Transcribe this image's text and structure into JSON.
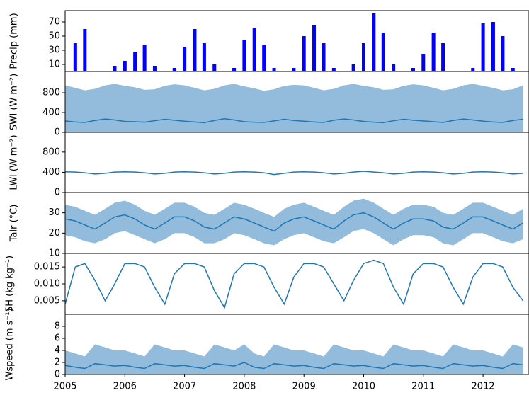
{
  "chart_data": [
    {
      "type": "bar",
      "ylabel": "Precip (mm)",
      "color": "#0000ff",
      "x": [
        2005,
        2005.17,
        2005.33,
        2005.5,
        2005.67,
        2005.83,
        2006,
        2006.17,
        2006.33,
        2006.5,
        2006.67,
        2006.83,
        2007,
        2007.17,
        2007.33,
        2007.5,
        2007.67,
        2007.83,
        2008,
        2008.17,
        2008.33,
        2008.5,
        2008.67,
        2008.83,
        2009,
        2009.17,
        2009.33,
        2009.5,
        2009.67,
        2009.83,
        2010,
        2010.17,
        2010.33,
        2010.5,
        2010.67,
        2010.83,
        2011,
        2011.17,
        2011.33,
        2011.5,
        2011.67,
        2011.83,
        2012,
        2012.17,
        2012.33,
        2012.5,
        2012.67
      ],
      "values": [
        0,
        40,
        60,
        0,
        0,
        8,
        15,
        28,
        38,
        8,
        0,
        5,
        35,
        60,
        40,
        10,
        0,
        5,
        45,
        62,
        38,
        5,
        0,
        5,
        50,
        65,
        40,
        5,
        0,
        10,
        40,
        82,
        55,
        10,
        0,
        5,
        25,
        55,
        40,
        0,
        0,
        5,
        68,
        70,
        50,
        5,
        0
      ],
      "xlim": [
        2005,
        2012.77
      ],
      "ylim": [
        0,
        86
      ],
      "yticks": [
        10,
        30,
        50,
        70
      ]
    },
    {
      "type": "line",
      "ylabel": "SWi (W m⁻²)",
      "color": "#1f77b4",
      "band_color": "#93bcdc",
      "x": [
        2005,
        2005.17,
        2005.33,
        2005.5,
        2005.67,
        2005.83,
        2006,
        2006.17,
        2006.33,
        2006.5,
        2006.67,
        2006.83,
        2007,
        2007.17,
        2007.33,
        2007.5,
        2007.67,
        2007.83,
        2008,
        2008.17,
        2008.33,
        2008.5,
        2008.67,
        2008.83,
        2009,
        2009.17,
        2009.33,
        2009.5,
        2009.67,
        2009.83,
        2010,
        2010.17,
        2010.33,
        2010.5,
        2010.67,
        2010.83,
        2011,
        2011.17,
        2011.33,
        2011.5,
        2011.67,
        2011.83,
        2012,
        2012.17,
        2012.33,
        2012.5,
        2012.67
      ],
      "values": [
        230,
        210,
        200,
        240,
        270,
        250,
        220,
        215,
        205,
        235,
        265,
        245,
        225,
        210,
        195,
        240,
        275,
        250,
        215,
        205,
        200,
        230,
        265,
        240,
        225,
        210,
        200,
        245,
        270,
        250,
        220,
        205,
        195,
        235,
        265,
        245,
        230,
        215,
        200,
        240,
        270,
        250,
        225,
        210,
        200,
        240,
        265
      ],
      "upper": [
        950,
        900,
        850,
        880,
        950,
        980,
        940,
        910,
        860,
        870,
        940,
        970,
        950,
        900,
        850,
        880,
        950,
        980,
        930,
        890,
        840,
        870,
        940,
        960,
        950,
        900,
        850,
        880,
        950,
        980,
        940,
        910,
        860,
        870,
        940,
        970,
        950,
        900,
        850,
        880,
        950,
        980,
        940,
        900,
        850,
        870,
        950
      ],
      "xlim": [
        2005,
        2012.77
      ],
      "ylim": [
        0,
        1230
      ],
      "yticks": [
        0,
        400,
        800
      ]
    },
    {
      "type": "line",
      "ylabel": "LWi (W m⁻²)",
      "color": "#1f77b4",
      "x": [
        2005,
        2005.17,
        2005.33,
        2005.5,
        2005.67,
        2005.83,
        2006,
        2006.17,
        2006.33,
        2006.5,
        2006.67,
        2006.83,
        2007,
        2007.17,
        2007.33,
        2007.5,
        2007.67,
        2007.83,
        2008,
        2008.17,
        2008.33,
        2008.5,
        2008.67,
        2008.83,
        2009,
        2009.17,
        2009.33,
        2009.5,
        2009.67,
        2009.83,
        2010,
        2010.17,
        2010.33,
        2010.5,
        2010.67,
        2010.83,
        2011,
        2011.17,
        2011.33,
        2011.5,
        2011.67,
        2011.83,
        2012,
        2012.17,
        2012.33,
        2012.5,
        2012.67
      ],
      "values": [
        410,
        405,
        390,
        365,
        380,
        405,
        410,
        405,
        390,
        365,
        380,
        405,
        410,
        405,
        390,
        365,
        380,
        405,
        410,
        405,
        390,
        355,
        380,
        405,
        410,
        405,
        390,
        365,
        380,
        405,
        420,
        405,
        390,
        365,
        380,
        405,
        410,
        405,
        390,
        365,
        380,
        405,
        410,
        405,
        390,
        365,
        380
      ],
      "xlim": [
        2005,
        2012.77
      ],
      "ylim": [
        0,
        1190
      ],
      "yticks": [
        0,
        400,
        800
      ]
    },
    {
      "type": "line",
      "ylabel": "Tair (°C)",
      "color": "#1f77b4",
      "band_color": "#93bcdc",
      "x": [
        2005,
        2005.17,
        2005.33,
        2005.5,
        2005.67,
        2005.83,
        2006,
        2006.17,
        2006.33,
        2006.5,
        2006.67,
        2006.83,
        2007,
        2007.17,
        2007.33,
        2007.5,
        2007.67,
        2007.83,
        2008,
        2008.17,
        2008.33,
        2008.5,
        2008.67,
        2008.83,
        2009,
        2009.17,
        2009.33,
        2009.5,
        2009.67,
        2009.83,
        2010,
        2010.17,
        2010.33,
        2010.5,
        2010.67,
        2010.83,
        2011,
        2011.17,
        2011.33,
        2011.5,
        2011.67,
        2011.83,
        2012,
        2012.17,
        2012.33,
        2012.5,
        2012.67
      ],
      "values": [
        27,
        26,
        24,
        22,
        25,
        28,
        29,
        27,
        24,
        22,
        25,
        28,
        28,
        26,
        23,
        22,
        25,
        28,
        27,
        25,
        23,
        21,
        25,
        27,
        28,
        26,
        24,
        22,
        26,
        29,
        30,
        28,
        25,
        22,
        25,
        27,
        27,
        26,
        23,
        22,
        25,
        28,
        28,
        26,
        24,
        22,
        25
      ],
      "lower": [
        19,
        18,
        16,
        15,
        17,
        20,
        21,
        19,
        17,
        15,
        17,
        20,
        20,
        18,
        15,
        15,
        17,
        20,
        19,
        17,
        15,
        14,
        17,
        19,
        20,
        18,
        16,
        15,
        18,
        21,
        22,
        20,
        17,
        14,
        17,
        19,
        19,
        18,
        15,
        14,
        17,
        20,
        20,
        18,
        16,
        15,
        17
      ],
      "upper": [
        34,
        33,
        31,
        29,
        32,
        35,
        36,
        34,
        31,
        29,
        32,
        35,
        35,
        33,
        30,
        29,
        32,
        35,
        34,
        32,
        30,
        28,
        32,
        34,
        35,
        33,
        31,
        29,
        33,
        36,
        37,
        35,
        32,
        29,
        32,
        34,
        34,
        33,
        30,
        29,
        32,
        35,
        35,
        33,
        31,
        29,
        32
      ],
      "xlim": [
        2005,
        2012.77
      ],
      "ylim": [
        10,
        40
      ],
      "yticks": [
        10,
        20,
        30
      ]
    },
    {
      "type": "line",
      "ylabel": "SH (kg kg⁻¹)",
      "color": "#1f77b4",
      "x": [
        2005,
        2005.17,
        2005.33,
        2005.5,
        2005.67,
        2005.83,
        2006,
        2006.17,
        2006.33,
        2006.5,
        2006.67,
        2006.83,
        2007,
        2007.17,
        2007.33,
        2007.5,
        2007.67,
        2007.83,
        2008,
        2008.17,
        2008.33,
        2008.5,
        2008.67,
        2008.83,
        2009,
        2009.17,
        2009.33,
        2009.5,
        2009.67,
        2009.83,
        2010,
        2010.17,
        2010.33,
        2010.5,
        2010.67,
        2010.83,
        2011,
        2011.17,
        2011.33,
        2011.5,
        2011.67,
        2011.83,
        2012,
        2012.17,
        2012.33,
        2012.5,
        2012.67
      ],
      "values": [
        0.004,
        0.015,
        0.016,
        0.011,
        0.005,
        0.01,
        0.016,
        0.016,
        0.015,
        0.009,
        0.004,
        0.013,
        0.016,
        0.016,
        0.015,
        0.008,
        0.003,
        0.013,
        0.016,
        0.016,
        0.015,
        0.009,
        0.004,
        0.012,
        0.016,
        0.016,
        0.015,
        0.01,
        0.005,
        0.011,
        0.016,
        0.017,
        0.016,
        0.009,
        0.004,
        0.013,
        0.016,
        0.016,
        0.015,
        0.009,
        0.004,
        0.012,
        0.016,
        0.016,
        0.015,
        0.009,
        0.005
      ],
      "xlim": [
        2005,
        2012.77
      ],
      "ylim": [
        0.001,
        0.019
      ],
      "yticks": [
        0.005,
        {
          "value": 0.01,
          "label": "0.010"
        },
        0.015
      ]
    },
    {
      "type": "line",
      "ylabel": "Wspeed (m s⁻¹)",
      "color": "#1f77b4",
      "band_color": "#93bcdc",
      "x": [
        2005,
        2005.17,
        2005.33,
        2005.5,
        2005.67,
        2005.83,
        2006,
        2006.17,
        2006.33,
        2006.5,
        2006.67,
        2006.83,
        2007,
        2007.17,
        2007.33,
        2007.5,
        2007.67,
        2007.83,
        2008,
        2008.17,
        2008.33,
        2008.5,
        2008.67,
        2008.83,
        2009,
        2009.17,
        2009.33,
        2009.5,
        2009.67,
        2009.83,
        2010,
        2010.17,
        2010.33,
        2010.5,
        2010.67,
        2010.83,
        2011,
        2011.17,
        2011.33,
        2011.5,
        2011.67,
        2011.83,
        2012,
        2012.17,
        2012.33,
        2012.5,
        2012.67
      ],
      "values": [
        1.5,
        1.2,
        1.0,
        1.8,
        1.6,
        1.4,
        1.5,
        1.2,
        1.0,
        1.8,
        1.6,
        1.4,
        1.5,
        1.2,
        1.0,
        1.8,
        1.6,
        1.4,
        2.0,
        1.2,
        1.0,
        1.8,
        1.6,
        1.4,
        1.5,
        1.2,
        1.0,
        1.8,
        1.6,
        1.4,
        1.5,
        1.2,
        1.0,
        1.8,
        1.6,
        1.4,
        1.5,
        1.2,
        1.0,
        1.8,
        1.6,
        1.4,
        1.5,
        1.2,
        1.0,
        1.8,
        1.6
      ],
      "upper": [
        4,
        3.5,
        3,
        5,
        4.5,
        4,
        4,
        3.5,
        3,
        5,
        4.5,
        4,
        4,
        3.5,
        3,
        5,
        4.5,
        4,
        5,
        3.5,
        3,
        5,
        4.5,
        4,
        4,
        3.5,
        3,
        5,
        4.5,
        4,
        4,
        3.5,
        3,
        5,
        4.5,
        4,
        4,
        3.5,
        3,
        5,
        4.5,
        4,
        4,
        3.5,
        3,
        5,
        4.5
      ],
      "xlim": [
        2005,
        2012.77
      ],
      "ylim": [
        0,
        10
      ],
      "yticks": [
        0,
        2,
        4,
        6,
        8
      ],
      "xticks": [
        2005,
        2006,
        2007,
        2008,
        2009,
        2010,
        2011,
        2012
      ]
    }
  ]
}
